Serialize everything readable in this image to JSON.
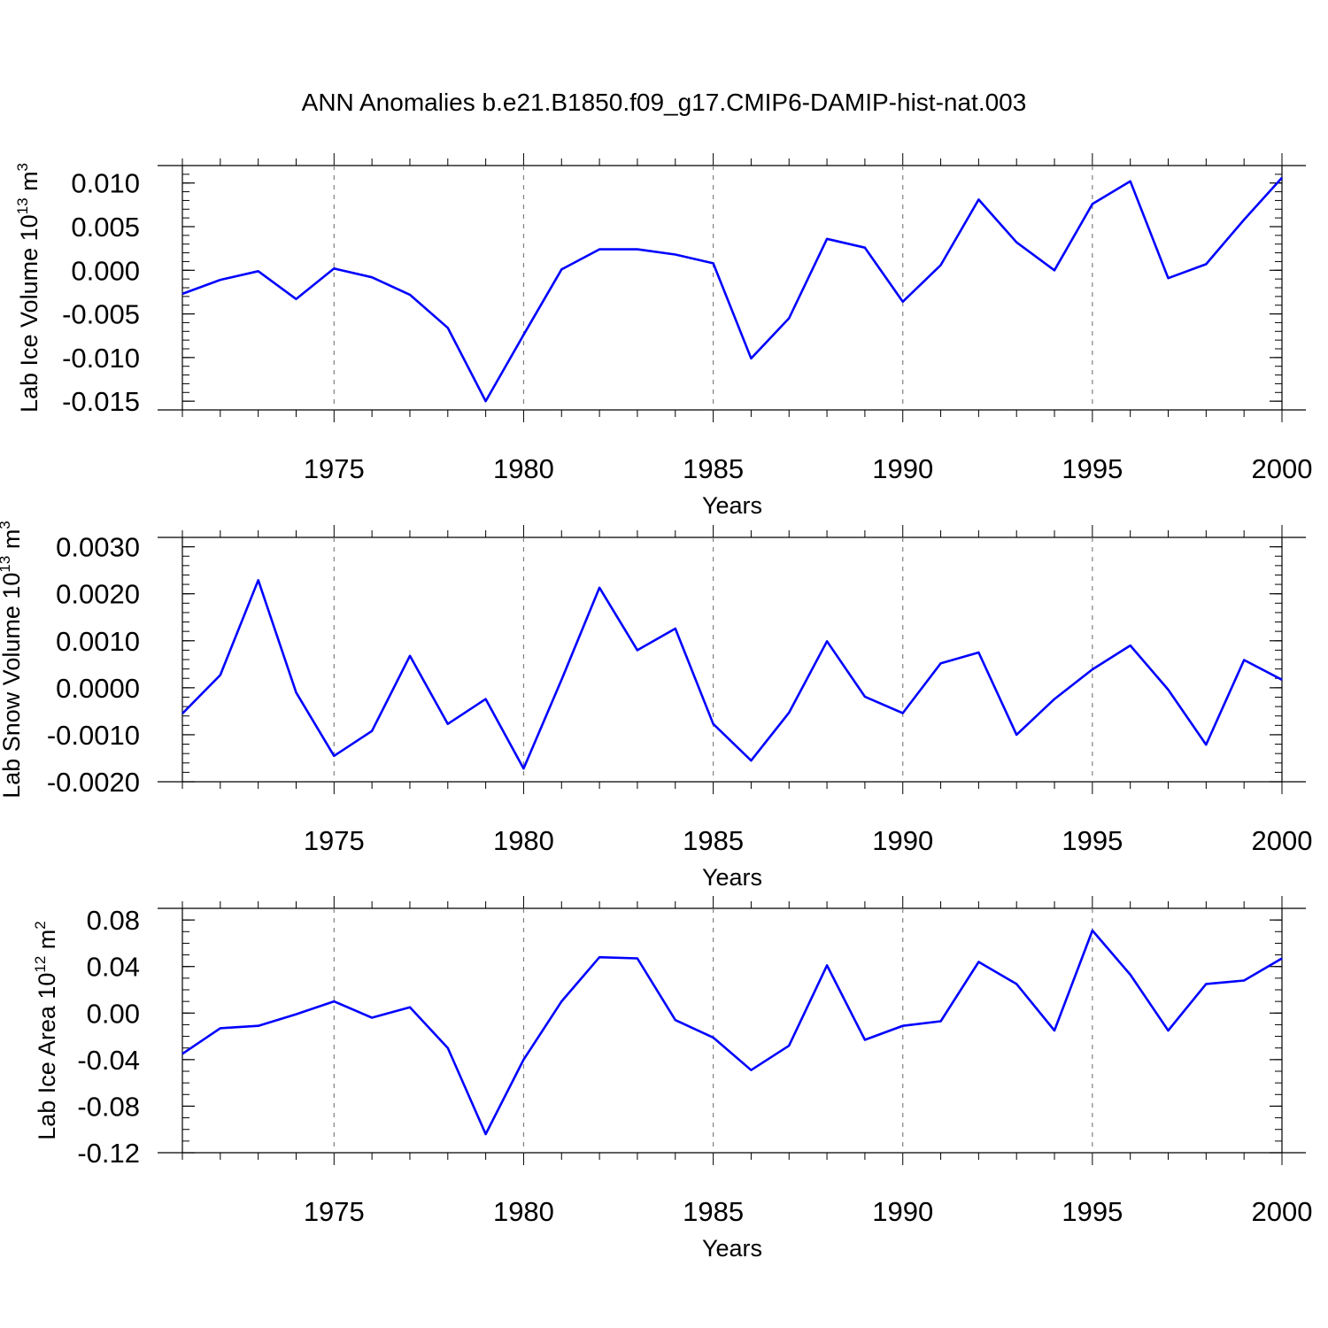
{
  "title": "ANN Anomalies b.e21.B1850.f09_g17.CMIP6-DAMIP-hist-nat.003",
  "colors": {
    "line": "#0000ff",
    "axis": "#000000",
    "grid": "#808080",
    "background": "#ffffff"
  },
  "chart_data": [
    {
      "type": "line",
      "ylabel_main": "Lab Ice Volume 10",
      "ylabel_exp": "13",
      "ylabel_unit": " m",
      "ylabel_unit_exp": "3",
      "xlabel": "Years",
      "xlim": [
        1971,
        2000
      ],
      "ylim": [
        -0.016,
        0.012
      ],
      "x_ticks": [
        1975,
        1980,
        1985,
        1990,
        1995,
        2000
      ],
      "x_tick_labels": [
        "1975",
        "1980",
        "1985",
        "1990",
        "1995",
        "2000"
      ],
      "y_ticks": [
        0.01,
        0.005,
        0.0,
        -0.005,
        -0.01,
        -0.015
      ],
      "y_tick_labels": [
        "0.010",
        "0.005",
        "0.000",
        "-0.005",
        "-0.010",
        "-0.015"
      ],
      "y_minor_step": 0.001,
      "grid": "vertical dashed at major x ticks",
      "x": [
        1971,
        1972,
        1973,
        1974,
        1975,
        1976,
        1977,
        1978,
        1979,
        1980,
        1981,
        1982,
        1983,
        1984,
        1985,
        1986,
        1987,
        1988,
        1989,
        1990,
        1991,
        1992,
        1993,
        1994,
        1995,
        1996,
        1997,
        1998,
        1999,
        2000
      ],
      "series": [
        {
          "name": "Lab Ice Volume",
          "values": [
            -0.0027,
            -0.0011,
            -0.0001,
            -0.0033,
            0.0002,
            -0.0008,
            -0.0028,
            -0.0066,
            -0.015,
            -0.0074,
            0.0001,
            0.0024,
            0.0024,
            0.0018,
            0.0008,
            -0.0101,
            -0.0055,
            0.0036,
            0.0026,
            -0.0036,
            0.0006,
            0.0081,
            0.0032,
            0.0,
            0.0076,
            0.0102,
            -0.0009,
            0.0007,
            0.0058,
            0.0106
          ]
        }
      ]
    },
    {
      "type": "line",
      "ylabel_main": "Lab Snow Volume 10",
      "ylabel_exp": "13",
      "ylabel_unit": " m",
      "ylabel_unit_exp": "3",
      "xlabel": "Years",
      "xlim": [
        1971,
        2000
      ],
      "ylim": [
        -0.002,
        0.0032
      ],
      "x_ticks": [
        1975,
        1980,
        1985,
        1990,
        1995,
        2000
      ],
      "x_tick_labels": [
        "1975",
        "1980",
        "1985",
        "1990",
        "1995",
        "2000"
      ],
      "y_ticks": [
        0.003,
        0.002,
        0.001,
        0.0,
        -0.001,
        -0.002
      ],
      "y_tick_labels": [
        "0.0030",
        "0.0020",
        "0.0010",
        "0.0000",
        "-0.0010",
        "-0.0020"
      ],
      "y_minor_step": 0.0002,
      "grid": "vertical dashed at major x ticks",
      "x": [
        1971,
        1972,
        1973,
        1974,
        1975,
        1976,
        1977,
        1978,
        1979,
        1980,
        1981,
        1982,
        1983,
        1984,
        1985,
        1986,
        1987,
        1988,
        1989,
        1990,
        1991,
        1992,
        1993,
        1994,
        1995,
        1996,
        1997,
        1998,
        1999,
        2000
      ],
      "series": [
        {
          "name": "Lab Snow Volume",
          "values": [
            -0.00055,
            0.00027,
            0.00229,
            -0.0001,
            -0.00145,
            -0.00092,
            0.00068,
            -0.00077,
            -0.00024,
            -0.00172,
            0.00017,
            0.00213,
            0.0008,
            0.00126,
            -0.00077,
            -0.00155,
            -0.00053,
            0.00099,
            -0.00019,
            -0.00054,
            0.00052,
            0.00075,
            -0.001,
            -0.00024,
            0.00039,
            0.0009,
            -4e-05,
            -0.00121,
            0.00059,
            0.00017
          ]
        }
      ]
    },
    {
      "type": "line",
      "ylabel_main": "Lab Ice Area 10",
      "ylabel_exp": "12",
      "ylabel_unit": " m",
      "ylabel_unit_exp": "2",
      "xlabel": "Years",
      "xlim": [
        1971,
        2000
      ],
      "ylim": [
        -0.12,
        0.09
      ],
      "x_ticks": [
        1975,
        1980,
        1985,
        1990,
        1995,
        2000
      ],
      "x_tick_labels": [
        "1975",
        "1980",
        "1985",
        "1990",
        "1995",
        "2000"
      ],
      "y_ticks": [
        0.08,
        0.04,
        0.0,
        -0.04,
        -0.08,
        -0.12
      ],
      "y_tick_labels": [
        "0.08",
        "0.04",
        "0.00",
        "-0.04",
        "-0.08",
        "-0.12"
      ],
      "y_minor_step": 0.01,
      "grid": "vertical dashed at major x ticks",
      "x": [
        1971,
        1972,
        1973,
        1974,
        1975,
        1976,
        1977,
        1978,
        1979,
        1980,
        1981,
        1982,
        1983,
        1984,
        1985,
        1986,
        1987,
        1988,
        1989,
        1990,
        1991,
        1992,
        1993,
        1994,
        1995,
        1996,
        1997,
        1998,
        1999,
        2000
      ],
      "series": [
        {
          "name": "Lab Ice Area",
          "values": [
            -0.035,
            -0.013,
            -0.011,
            -0.001,
            0.01,
            -0.004,
            0.005,
            -0.03,
            -0.104,
            -0.04,
            0.01,
            0.048,
            0.047,
            -0.006,
            -0.021,
            -0.049,
            -0.028,
            0.041,
            -0.023,
            -0.011,
            -0.007,
            0.044,
            0.025,
            -0.015,
            0.071,
            0.033,
            -0.015,
            0.025,
            0.028,
            0.047
          ]
        }
      ]
    }
  ]
}
